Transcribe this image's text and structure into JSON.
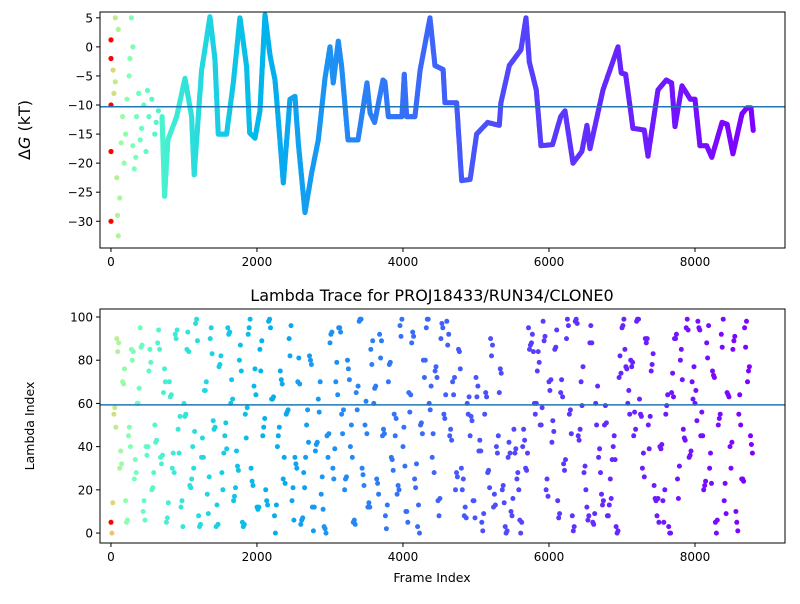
{
  "chart_data": [
    {
      "type": "scatter",
      "title": "",
      "xlabel": "",
      "ylabel_prefix": "Δ",
      "ylabel_var": "G",
      "ylabel_suffix": " (kT)",
      "xlim": [
        -150,
        9233
      ],
      "ylim": [
        -34.6,
        6.0
      ],
      "xticks": [
        0,
        2000,
        4000,
        6000,
        8000
      ],
      "xtick_labels": [
        "0",
        "2000",
        "4000",
        "6000",
        "8000"
      ],
      "yticks": [
        5,
        0,
        -5,
        -10,
        -15,
        -20,
        -25,
        -30
      ],
      "ytick_labels": [
        "5",
        "0",
        "−5",
        "−10",
        "−15",
        "−20",
        "−25",
        "−30"
      ],
      "hline": -10.3,
      "hline_color": "#1f77b4",
      "colormap": "rainbow (reversed by frame)",
      "early_scatter": [
        [
          0,
          -30
        ],
        [
          0,
          -18
        ],
        [
          0,
          -10
        ],
        [
          0,
          1.2
        ],
        [
          0,
          -2
        ],
        [
          30,
          -4
        ],
        [
          40,
          -8
        ],
        [
          60,
          5
        ],
        [
          80,
          -22.5
        ],
        [
          90,
          -29
        ],
        [
          100,
          -32.5
        ],
        [
          120,
          -26
        ],
        [
          140,
          -16.5
        ],
        [
          160,
          -12
        ],
        [
          200,
          -15
        ],
        [
          220,
          -9
        ],
        [
          250,
          -5
        ],
        [
          280,
          5
        ],
        [
          300,
          0
        ],
        [
          300,
          -17
        ],
        [
          320,
          -21
        ],
        [
          350,
          -12
        ],
        [
          380,
          -8
        ],
        [
          420,
          -14
        ],
        [
          450,
          -10
        ],
        [
          480,
          -18
        ],
        [
          520,
          -12
        ],
        [
          560,
          -9
        ],
        [
          600,
          -15
        ],
        [
          650,
          -11
        ],
        [
          100,
          3
        ],
        [
          60,
          -6
        ],
        [
          180,
          -20
        ],
        [
          260,
          -2
        ],
        [
          340,
          -19
        ],
        [
          400,
          -16
        ],
        [
          500,
          -7.5
        ],
        [
          620,
          -13
        ]
      ],
      "trace": [
        [
          700,
          -12
        ],
        [
          735,
          -25.7
        ],
        [
          780,
          -16
        ],
        [
          900,
          -12
        ],
        [
          1014,
          -5.4
        ],
        [
          1105,
          -12
        ],
        [
          1140,
          -22
        ],
        [
          1194,
          -12.5
        ],
        [
          1240,
          -4.2
        ],
        [
          1356,
          5.2
        ],
        [
          1425,
          -2.2
        ],
        [
          1470,
          -15
        ],
        [
          1584,
          -15
        ],
        [
          1676,
          -6.2
        ],
        [
          1767,
          5
        ],
        [
          1858,
          -3.4
        ],
        [
          1900,
          -14.8
        ],
        [
          1973,
          -15.7
        ],
        [
          2041,
          -11
        ],
        [
          2110,
          5.5
        ],
        [
          2178,
          -1.4
        ],
        [
          2247,
          -5.7
        ],
        [
          2270,
          -9
        ],
        [
          2361,
          -23.4
        ],
        [
          2452,
          -9
        ],
        [
          2521,
          -8.5
        ],
        [
          2566,
          -16.5
        ],
        [
          2658,
          -28.5
        ],
        [
          2749,
          -21.7
        ],
        [
          2840,
          -16
        ],
        [
          2932,
          -5.4
        ],
        [
          3000,
          0
        ],
        [
          3045,
          -6.2
        ],
        [
          3114,
          1
        ],
        [
          3160,
          -3.4
        ],
        [
          3247,
          -16
        ],
        [
          3384,
          -16
        ],
        [
          3507,
          -6.2
        ],
        [
          3550,
          -11.4
        ],
        [
          3612,
          -13
        ],
        [
          3726,
          -5.7
        ],
        [
          3753,
          -6
        ],
        [
          3800,
          -12
        ],
        [
          3986,
          -12
        ],
        [
          4018,
          -4.7
        ],
        [
          4050,
          -12
        ],
        [
          4164,
          -12
        ],
        [
          4235,
          -4
        ],
        [
          4370,
          5
        ],
        [
          4438,
          -3.2
        ],
        [
          4550,
          -3.9
        ],
        [
          4575,
          -9.6
        ],
        [
          4735,
          -9.6
        ],
        [
          4804,
          -23
        ],
        [
          4920,
          -22.8
        ],
        [
          5009,
          -15
        ],
        [
          5160,
          -13
        ],
        [
          5320,
          -13.5
        ],
        [
          5342,
          -9.6
        ],
        [
          5457,
          -3.2
        ],
        [
          5616,
          -0.5
        ],
        [
          5685,
          5
        ],
        [
          5731,
          -2.6
        ],
        [
          5826,
          -7.4
        ],
        [
          5890,
          -17
        ],
        [
          6050,
          -16.8
        ],
        [
          6160,
          -12
        ],
        [
          6219,
          -11
        ],
        [
          6329,
          -20
        ],
        [
          6450,
          -18
        ],
        [
          6520,
          -13.5
        ],
        [
          6562,
          -17.5
        ],
        [
          6740,
          -7.4
        ],
        [
          6945,
          0
        ],
        [
          6990,
          -4.5
        ],
        [
          7050,
          -4.7
        ],
        [
          7150,
          -14
        ],
        [
          7305,
          -14.3
        ],
        [
          7356,
          -18.8
        ],
        [
          7493,
          -7.4
        ],
        [
          7607,
          -5.7
        ],
        [
          7680,
          -6.2
        ],
        [
          7726,
          -13.7
        ],
        [
          7822,
          -6.7
        ],
        [
          7936,
          -9
        ],
        [
          8000,
          -9
        ],
        [
          8068,
          -17
        ],
        [
          8160,
          -17
        ],
        [
          8230,
          -19
        ],
        [
          8370,
          -13
        ],
        [
          8440,
          -13.3
        ],
        [
          8520,
          -18.4
        ],
        [
          8644,
          -11.5
        ],
        [
          8712,
          -10.5
        ],
        [
          8767,
          -10.5
        ],
        [
          8800,
          -14.6
        ]
      ]
    },
    {
      "type": "scatter",
      "title": "Lambda Trace for PROJ18433/RUN34/CLONE0",
      "xlabel": "Frame Index",
      "ylabel": "Lambda Index",
      "xlim": [
        -150,
        9233
      ],
      "ylim": [
        -4.6,
        103.7
      ],
      "xticks": [
        0,
        2000,
        4000,
        6000,
        8000
      ],
      "xtick_labels": [
        "0",
        "2000",
        "4000",
        "6000",
        "8000"
      ],
      "yticks": [
        0,
        20,
        40,
        60,
        80,
        100
      ],
      "ytick_labels": [
        "0",
        "20",
        "40",
        "60",
        "80",
        "100"
      ],
      "hline": 59.3,
      "hline_color": "#1f77b4",
      "frame_start": 0,
      "frame_step": 40,
      "lambda": [
        5,
        55,
        90,
        30,
        70,
        15,
        45,
        85,
        25,
        60,
        95,
        10,
        40,
        75,
        20,
        50,
        88,
        35,
        65,
        5,
        70,
        30,
        92,
        48,
        12,
        60,
        85,
        22,
        40,
        97,
        8,
        35,
        66,
        18,
        90,
        52,
        3,
        77,
        28,
        45,
        95,
        60,
        15,
        38,
        80,
        5,
        55,
        92,
        30,
        68,
        12,
        85,
        45,
        20,
        98,
        62,
        8,
        40,
        75,
        25,
        55,
        90,
        15,
        35,
        70,
        4,
        28,
        50,
        82,
        12,
        38,
        62,
        18,
        3,
        45,
        88,
        30,
        70,
        95,
        55,
        20,
        80,
        40,
        5,
        65,
        98,
        30,
        50,
        12,
        85,
        60,
        25,
        92,
        45,
        8,
        70,
        35,
        55,
        18,
        96,
        40,
        10,
        65,
        88,
        25,
        3,
        50,
        80,
        95,
        60,
        35,
        75,
        15,
        90,
        55,
        98,
        45,
        70,
        20,
        85,
        30,
        8,
        60,
        45,
        15,
        72,
        38,
        5,
        55,
        28,
        90,
        12,
        40,
        65,
        20,
        3,
        35,
        10,
        48,
        25,
        6,
        40,
        30,
        95,
        88,
        60,
        75,
        50,
        98,
        20,
        70,
        42,
        85,
        15,
        65,
        32,
        90,
        55,
        8,
        98,
        45,
        70,
        28,
        12,
        88,
        5,
        60,
        35,
        18,
        50,
        8,
        25,
        40,
        3,
        72,
        95,
        85,
        60,
        80,
        45,
        98,
        62,
        30,
        90,
        50,
        75,
        22,
        8,
        40,
        15,
        55,
        3,
        65,
        90,
        25,
        80,
        48,
        95,
        35,
        70,
        60,
        98,
        45,
        20,
        88,
        30,
        75,
        5,
        50,
        92,
        15,
        65,
        40,
        85,
        10,
        55,
        25,
        95,
        70,
        45
      ]
    }
  ]
}
